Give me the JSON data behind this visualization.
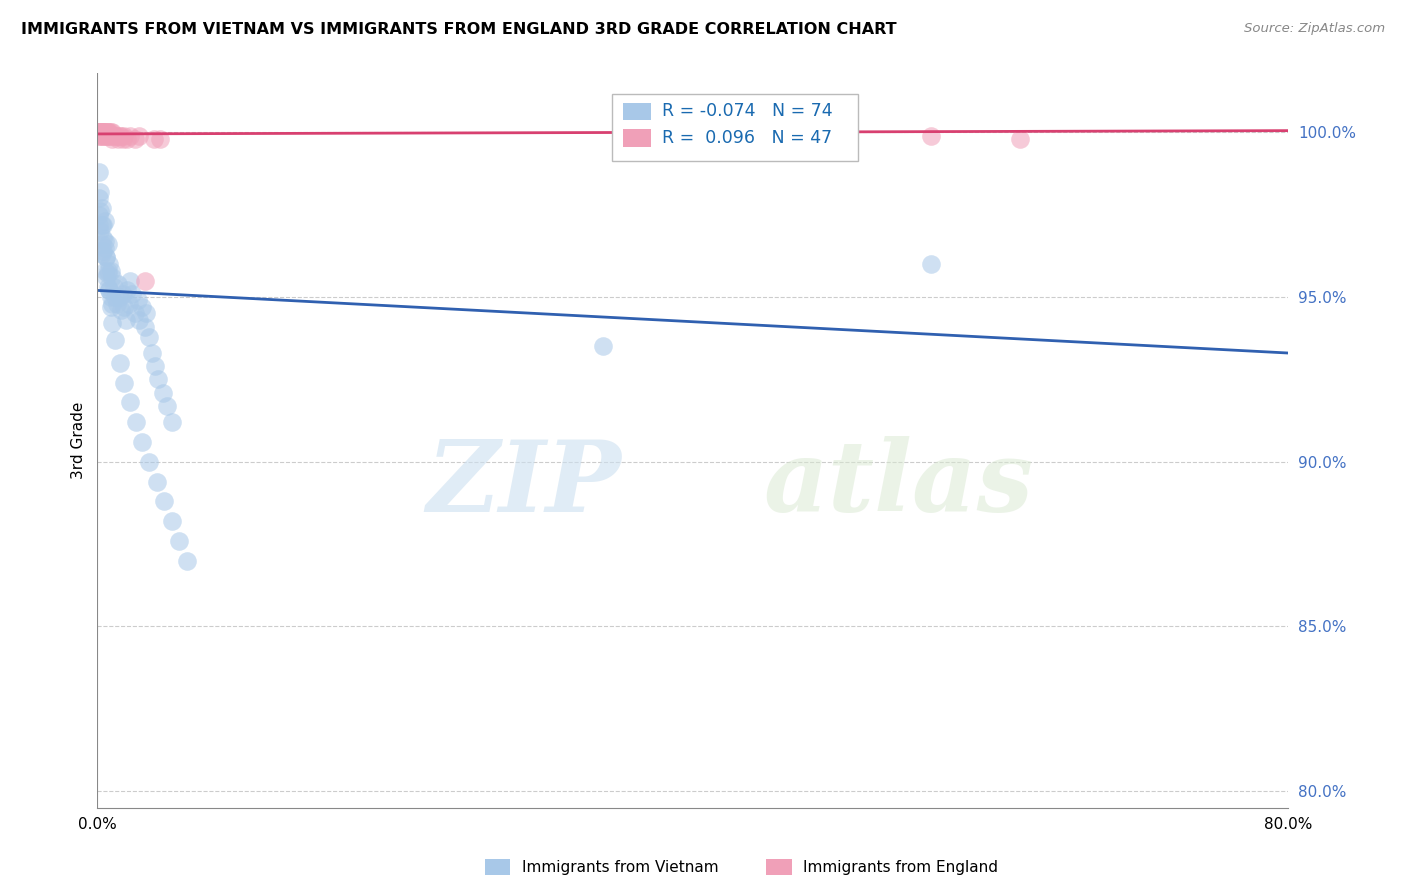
{
  "title": "IMMIGRANTS FROM VIETNAM VS IMMIGRANTS FROM ENGLAND 3RD GRADE CORRELATION CHART",
  "source": "Source: ZipAtlas.com",
  "ylabel": "3rd Grade",
  "xmin": 0.0,
  "xmax": 0.8,
  "ymin": 0.795,
  "ymax": 1.018,
  "yticks": [
    0.8,
    0.85,
    0.9,
    0.95,
    1.0
  ],
  "ytick_labels": [
    "80.0%",
    "85.0%",
    "90.0%",
    "95.0%",
    "100.0%"
  ],
  "legend_vietnam": "Immigrants from Vietnam",
  "legend_england": "Immigrants from England",
  "R_vietnam": -0.074,
  "N_vietnam": 74,
  "R_england": 0.096,
  "N_england": 47,
  "color_vietnam": "#a8c8e8",
  "color_england": "#f0a0b8",
  "line_color_vietnam": "#3060b0",
  "line_color_england": "#d84070",
  "watermark_zip": "ZIP",
  "watermark_atlas": "atlas",
  "viet_trend_x0": 0.0,
  "viet_trend_x1": 0.8,
  "viet_trend_y0": 0.952,
  "viet_trend_y1": 0.933,
  "eng_trend_y0": 0.9995,
  "eng_trend_y1": 1.0005,
  "vietnam_x": [
    0.001,
    0.001,
    0.001,
    0.002,
    0.002,
    0.003,
    0.003,
    0.003,
    0.004,
    0.004,
    0.005,
    0.005,
    0.005,
    0.006,
    0.006,
    0.007,
    0.007,
    0.007,
    0.008,
    0.008,
    0.009,
    0.009,
    0.01,
    0.01,
    0.011,
    0.012,
    0.013,
    0.014,
    0.015,
    0.016,
    0.017,
    0.018,
    0.019,
    0.02,
    0.021,
    0.022,
    0.023,
    0.025,
    0.027,
    0.028,
    0.03,
    0.032,
    0.033,
    0.035,
    0.037,
    0.039,
    0.041,
    0.044,
    0.047,
    0.05,
    0.001,
    0.002,
    0.003,
    0.004,
    0.005,
    0.006,
    0.007,
    0.008,
    0.009,
    0.01,
    0.012,
    0.015,
    0.018,
    0.022,
    0.026,
    0.03,
    0.035,
    0.04,
    0.045,
    0.05,
    0.055,
    0.06,
    0.34,
    0.56
  ],
  "vietnam_y": [
    0.98,
    0.975,
    0.972,
    0.976,
    0.97,
    0.972,
    0.966,
    0.963,
    0.968,
    0.964,
    0.973,
    0.965,
    0.958,
    0.962,
    0.956,
    0.966,
    0.958,
    0.953,
    0.96,
    0.952,
    0.958,
    0.95,
    0.956,
    0.948,
    0.953,
    0.95,
    0.948,
    0.954,
    0.95,
    0.946,
    0.951,
    0.947,
    0.943,
    0.952,
    0.948,
    0.955,
    0.951,
    0.945,
    0.949,
    0.943,
    0.947,
    0.941,
    0.945,
    0.938,
    0.933,
    0.929,
    0.925,
    0.921,
    0.917,
    0.912,
    0.988,
    0.982,
    0.977,
    0.972,
    0.967,
    0.962,
    0.957,
    0.952,
    0.947,
    0.942,
    0.937,
    0.93,
    0.924,
    0.918,
    0.912,
    0.906,
    0.9,
    0.894,
    0.888,
    0.882,
    0.876,
    0.87,
    0.935,
    0.96
  ],
  "england_x": [
    0.001,
    0.001,
    0.001,
    0.001,
    0.001,
    0.002,
    0.002,
    0.002,
    0.002,
    0.003,
    0.003,
    0.003,
    0.003,
    0.004,
    0.004,
    0.004,
    0.005,
    0.005,
    0.005,
    0.006,
    0.006,
    0.007,
    0.007,
    0.007,
    0.008,
    0.008,
    0.009,
    0.009,
    0.01,
    0.01,
    0.011,
    0.012,
    0.013,
    0.014,
    0.015,
    0.016,
    0.017,
    0.018,
    0.02,
    0.022,
    0.025,
    0.028,
    0.032,
    0.038,
    0.042,
    0.56,
    0.62
  ],
  "england_y": [
    1.0,
    1.0,
    1.0,
    1.0,
    0.999,
    1.0,
    1.0,
    1.0,
    0.999,
    1.0,
    1.0,
    1.0,
    0.999,
    1.0,
    1.0,
    0.999,
    1.0,
    1.0,
    0.999,
    1.0,
    0.999,
    1.0,
    1.0,
    0.999,
    1.0,
    0.999,
    1.0,
    0.999,
    1.0,
    0.998,
    0.999,
    0.999,
    0.999,
    0.998,
    0.999,
    0.999,
    0.998,
    0.999,
    0.998,
    0.999,
    0.998,
    0.999,
    0.955,
    0.998,
    0.998,
    0.999,
    0.998
  ]
}
